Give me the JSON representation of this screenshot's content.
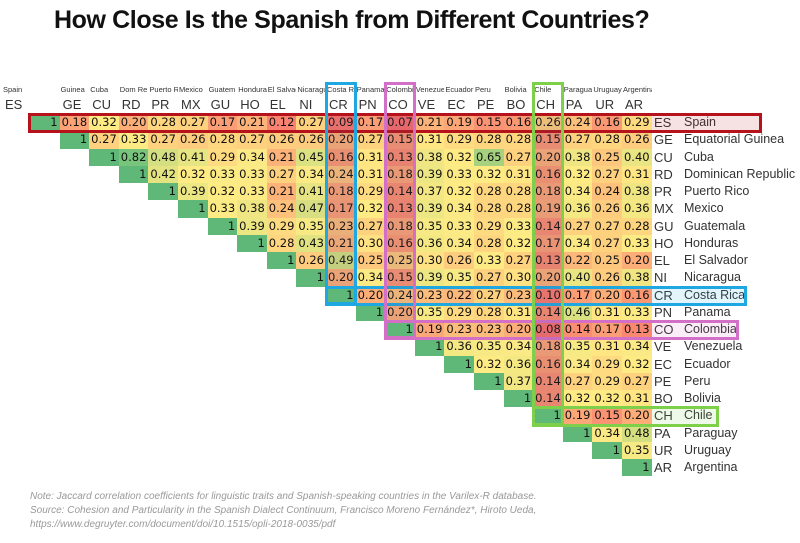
{
  "chart_data": {
    "type": "heatmap",
    "title": "How Close Is the Spanish from Different Countries?",
    "countries": [
      {
        "code": "ES",
        "header": "Spain",
        "name": "Spain"
      },
      {
        "code": "GE",
        "header": "Guinea",
        "name": "Equatorial Guinea"
      },
      {
        "code": "CU",
        "header": "Cuba",
        "name": "Cuba"
      },
      {
        "code": "RD",
        "header": "Dom Re",
        "name": "Dominican Republic"
      },
      {
        "code": "PR",
        "header": "Puerto R",
        "name": "Puerto Rico"
      },
      {
        "code": "MX",
        "header": "Mexico",
        "name": "Mexico"
      },
      {
        "code": "GU",
        "header": "Guatem",
        "name": "Guatemala"
      },
      {
        "code": "HO",
        "header": "Hondura",
        "name": "Honduras"
      },
      {
        "code": "EL",
        "header": "El Salvac",
        "name": "El Salvador"
      },
      {
        "code": "NI",
        "header": "Nicaragu",
        "name": "Nicaragua"
      },
      {
        "code": "CR",
        "header": "Costa R",
        "name": "Costa Rica"
      },
      {
        "code": "PN",
        "header": "Panama",
        "name": "Panama"
      },
      {
        "code": "CO",
        "header": "Colombi",
        "name": "Colombia"
      },
      {
        "code": "VE",
        "header": "Venezuel",
        "name": "Venezuela"
      },
      {
        "code": "EC",
        "header": "Ecuador",
        "name": "Ecuador"
      },
      {
        "code": "PE",
        "header": "Peru",
        "name": "Peru"
      },
      {
        "code": "BO",
        "header": "Bolivia",
        "name": "Bolivia"
      },
      {
        "code": "CH",
        "header": "Chile",
        "name": "Chile"
      },
      {
        "code": "PA",
        "header": "Paragua",
        "name": "Paraguay"
      },
      {
        "code": "UR",
        "header": "Uruguay",
        "name": "Uruguay"
      },
      {
        "code": "AR",
        "header": "Argentina",
        "name": "Argentina"
      }
    ],
    "matrix_upper_triangle": [
      [
        "1",
        "0.18",
        "0.32",
        "0.20",
        "0.28",
        "0.27",
        "0.17",
        "0.21",
        "0.12",
        "0.27",
        "0.09",
        "0.17",
        "0.07",
        "0.21",
        "0.19",
        "0.15",
        "0.16",
        "0.26",
        "0.24",
        "0.16",
        "0.29"
      ],
      [
        "1",
        "0.27",
        "0.33",
        "0.27",
        "0.26",
        "0.28",
        "0.27",
        "0.26",
        "0.26",
        "0.20",
        "0.27",
        "0.15",
        "0.31",
        "0.29",
        "0.28",
        "0.28",
        "0.15",
        "0.27",
        "0.28",
        "0.26"
      ],
      [
        "1",
        "0.82",
        "0.48",
        "0.41",
        "0.29",
        "0.34",
        "0.21",
        "0.45",
        "0.16",
        "0.31",
        "0.13",
        "0.38",
        "0.32",
        "0.65",
        "0.27",
        "0.20",
        "0.38",
        "0.25",
        "0.40"
      ],
      [
        "1",
        "0.42",
        "0.32",
        "0.33",
        "0.33",
        "0.27",
        "0.34",
        "0.24",
        "0.31",
        "0.18",
        "0.39",
        "0.33",
        "0.32",
        "0.31",
        "0.16",
        "0.32",
        "0.27",
        "0.31"
      ],
      [
        "1",
        "0.39",
        "0.32",
        "0.33",
        "0.21",
        "0.41",
        "0.18",
        "0.29",
        "0.14",
        "0.37",
        "0.32",
        "0.28",
        "0.28",
        "0.18",
        "0.34",
        "0.24",
        "0.38"
      ],
      [
        "1",
        "0.33",
        "0.38",
        "0.24",
        "0.47",
        "0.17",
        "0.32",
        "0.13",
        "0.39",
        "0.34",
        "0.28",
        "0.28",
        "0.19",
        "0.36",
        "0.26",
        "0.36"
      ],
      [
        "1",
        "0.39",
        "0.29",
        "0.35",
        "0.23",
        "0.27",
        "0.18",
        "0.35",
        "0.33",
        "0.29",
        "0.33",
        "0.14",
        "0.27",
        "0.27",
        "0.28"
      ],
      [
        "1",
        "0.28",
        "0.43",
        "0.21",
        "0.30",
        "0.16",
        "0.36",
        "0.34",
        "0.28",
        "0.32",
        "0.17",
        "0.34",
        "0.27",
        "0.33"
      ],
      [
        "1",
        "0.26",
        "0.49",
        "0.25",
        "0.25",
        "0.30",
        "0.26",
        "0.33",
        "0.27",
        "0.13",
        "0.22",
        "0.25",
        "0.20"
      ],
      [
        "1",
        "0.20",
        "0.34",
        "0.15",
        "0.39",
        "0.35",
        "0.27",
        "0.30",
        "0.20",
        "0.40",
        "0.26",
        "0.38"
      ],
      [
        "1",
        "0.20",
        "0.24",
        "0.23",
        "0.22",
        "0.27",
        "0.23",
        "0.10",
        "0.17",
        "0.20",
        "0.16"
      ],
      [
        "1",
        "0.20",
        "0.35",
        "0.29",
        "0.28",
        "0.31",
        "0.14",
        "0.46",
        "0.31",
        "0.33"
      ],
      [
        "1",
        "0.19",
        "0.23",
        "0.23",
        "0.20",
        "0.08",
        "0.14",
        "0.17",
        "0.13"
      ],
      [
        "1",
        "0.36",
        "0.35",
        "0.34",
        "0.18",
        "0.35",
        "0.31",
        "0.34"
      ],
      [
        "1",
        "0.32",
        "0.36",
        "0.16",
        "0.34",
        "0.29",
        "0.32"
      ],
      [
        "1",
        "0.37",
        "0.14",
        "0.27",
        "0.29",
        "0.27"
      ],
      [
        "1",
        "0.14",
        "0.32",
        "0.32",
        "0.31"
      ],
      [
        "1",
        "0.19",
        "0.15",
        "0.20"
      ],
      [
        "1",
        "0.34",
        "0.48"
      ],
      [
        "1",
        "0.35"
      ],
      [
        "1"
      ]
    ],
    "color_scale": {
      "low": "#f8696b",
      "mid": "#ffeb84",
      "high": "#63be7b"
    },
    "highlights": [
      {
        "code": "ES",
        "color": "#b5121b"
      },
      {
        "code": "CR",
        "color": "#1ea7e1"
      },
      {
        "code": "CO",
        "color": "#d46fc8"
      },
      {
        "code": "CH",
        "color": "#7ed04b"
      }
    ]
  },
  "notes": {
    "line1": "Note: Jaccard correlation coefficients for linguistic traits and Spanish-speaking countries in the Varilex-R database.",
    "line2": "Source: Cohesion and Particularity in the Spanish Dialect Continuum, Francisco Moreno Fernández*, Hiroto Ueda,",
    "line3": "https://www.degruyter.com/document/doi/10.1515/opli-2018-0035/pdf"
  }
}
